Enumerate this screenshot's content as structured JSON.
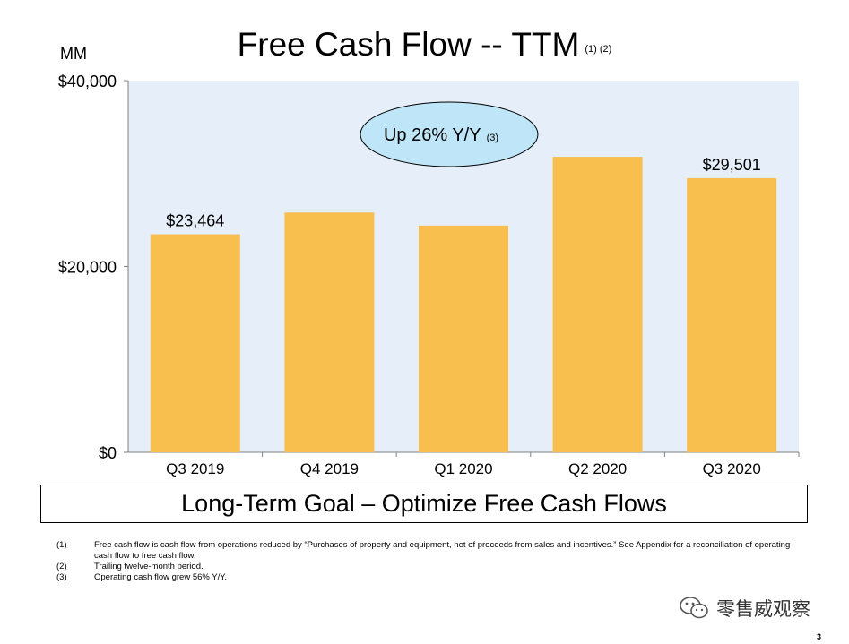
{
  "header": {
    "title": "Free Cash Flow -- TTM",
    "title_note": "(1) (2)",
    "unit": "MM"
  },
  "callout": {
    "text": "Up 26% Y/Y",
    "note": "(3)"
  },
  "chart_data": {
    "type": "bar",
    "title": "Free Cash Flow -- TTM",
    "ylabel": "MM",
    "xlabel": "",
    "categories": [
      "Q3 2019",
      "Q4 2019",
      "Q1 2020",
      "Q2 2020",
      "Q3 2020"
    ],
    "values": [
      23464,
      25800,
      24400,
      31800,
      29501
    ],
    "data_labels": [
      "$23,464",
      "",
      "",
      "",
      "$29,501"
    ],
    "ylim": [
      0,
      40000
    ],
    "yticks": [
      0,
      20000,
      40000
    ],
    "ytick_labels": [
      "$0",
      "$20,000",
      "$40,000"
    ],
    "grid": false
  },
  "colors": {
    "bar": "#F8BF4E",
    "plot_bg": "#E5EEF9",
    "callout_fill": "#BFE6F8",
    "axis": "#808080"
  },
  "goal": {
    "text": "Long-Term Goal – Optimize Free Cash Flows"
  },
  "footnotes": [
    {
      "num": "(1)",
      "text": "Free cash flow is cash flow from operations reduced by “Purchases of property and equipment, net of proceeds from sales and incentives.” See Appendix for a reconciliation of operating cash flow to free cash flow."
    },
    {
      "num": "(2)",
      "text": "Trailing twelve-month period."
    },
    {
      "num": "(3)",
      "text": "Operating cash flow grew 56% Y/Y."
    }
  ],
  "watermark": {
    "icon": "wechat-icon",
    "text": "零售威观察"
  },
  "page_number": "3"
}
